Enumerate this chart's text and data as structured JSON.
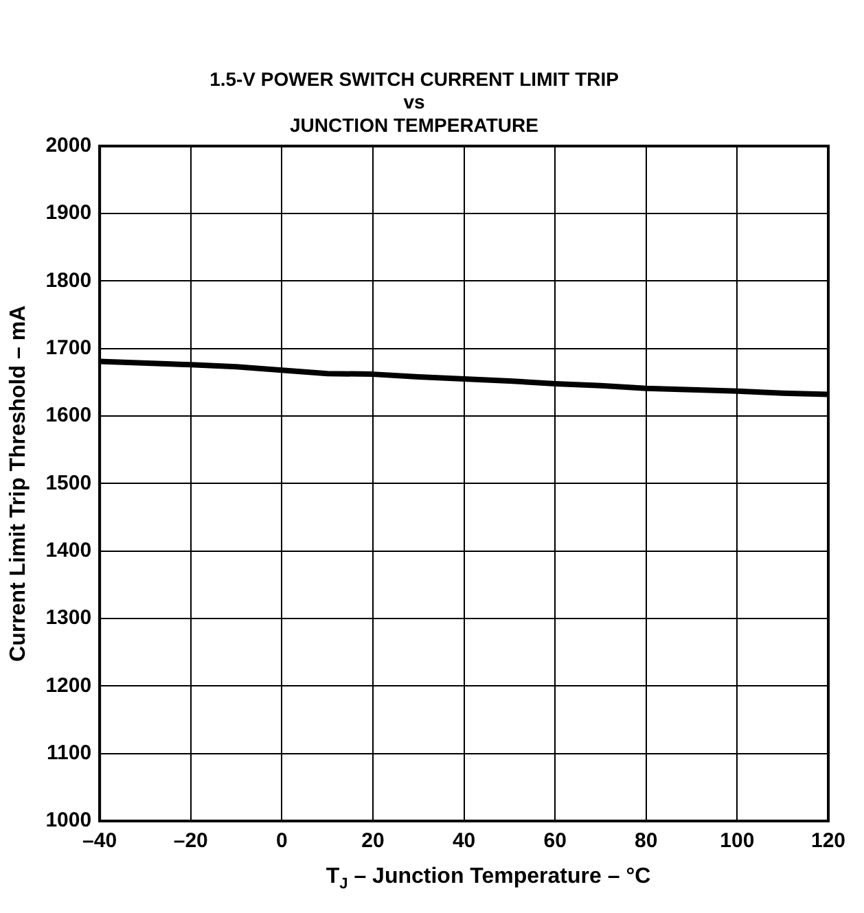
{
  "chart_data": {
    "type": "line",
    "title": "1.5-V POWER SWITCH CURRENT LIMIT TRIP\nvs\nJUNCTION TEMPERATURE",
    "xlabel": "T$_{J}$ – Junction Temperature – °C",
    "ylabel": "Current Limit Trip Threshold – mA",
    "x": [
      -40,
      -20,
      -10,
      0,
      10,
      20,
      30,
      40,
      50,
      60,
      70,
      80,
      90,
      100,
      110,
      120
    ],
    "series": [
      {
        "color": "#000000",
        "values": [
          1681,
          1676,
          1673,
          1668,
          1663,
          1662,
          1658,
          1655,
          1652,
          1648,
          1645,
          1641,
          1639,
          1637,
          1634,
          1632
        ]
      }
    ],
    "xlim": [
      -40,
      120
    ],
    "xticks": [
      {
        "value": -40,
        "label": "–40"
      },
      {
        "value": -20,
        "label": "–20"
      },
      0,
      20,
      40,
      60,
      80,
      100,
      120
    ],
    "ylim": [
      1000,
      2000
    ],
    "yticks": [
      1000,
      1100,
      1200,
      1300,
      1400,
      1500,
      1600,
      1700,
      1800,
      1900,
      2000
    ],
    "grid": true,
    "legend": false,
    "marker": "none",
    "line_style": "solid"
  }
}
